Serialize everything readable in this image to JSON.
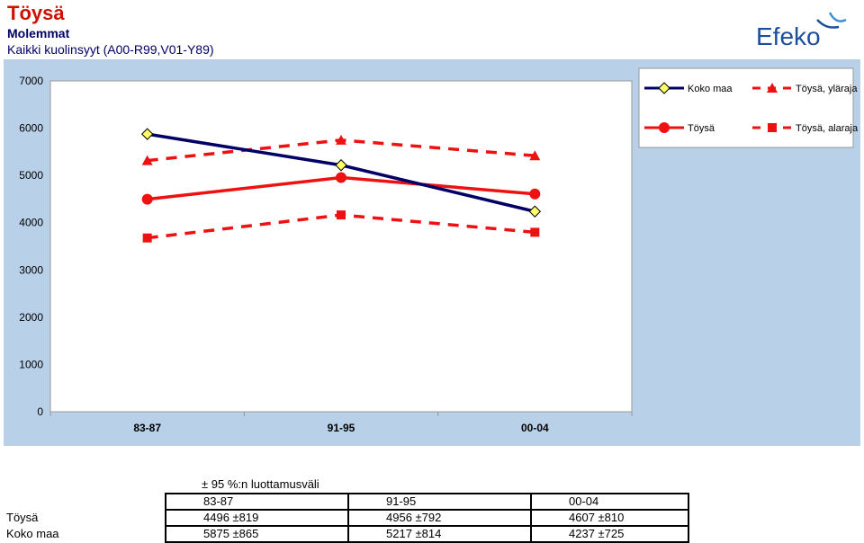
{
  "header": {
    "title": "Töysä",
    "subtitle": "Molemmat",
    "subtitle2": "Kaikki kuolinsyyt (A00-R99,V01-Y89)",
    "logo_text": "Efeko"
  },
  "colors": {
    "title": "#cc1100",
    "navy": "#000066",
    "red": "#ee1111",
    "plot_bg": "#ffffff",
    "frame_bg": "#b8d0e8",
    "diamond_fill": "#ffff66"
  },
  "chart_data": {
    "type": "line",
    "categories": [
      "83-87",
      "91-95",
      "00-04"
    ],
    "ylim": [
      0,
      7000
    ],
    "yticks": [
      "0",
      "1000",
      "2000",
      "3000",
      "4000",
      "5000",
      "6000",
      "7000"
    ],
    "grid": false,
    "legend_position": "top-right",
    "series": [
      {
        "name": "Koko maa",
        "values": [
          5875,
          5217,
          4237
        ],
        "color": "#000066",
        "marker": "diamond",
        "style": "solid"
      },
      {
        "name": "Töysä, yläraja",
        "values": [
          5315,
          5748,
          5417
        ],
        "color": "#ee1111",
        "marker": "triangle",
        "style": "dashed"
      },
      {
        "name": "Töysä",
        "values": [
          4496,
          4956,
          4607
        ],
        "color": "#ee1111",
        "marker": "circle",
        "style": "solid"
      },
      {
        "name": "Töysä, alaraja",
        "values": [
          3677,
          4164,
          3797
        ],
        "color": "#ee1111",
        "marker": "square",
        "style": "dashed"
      }
    ]
  },
  "ci_table": {
    "caption": "± 95 %:n luottamusväli",
    "columns": [
      "83-87",
      "91-95",
      "00-04"
    ],
    "rows": [
      {
        "label": "Töysä",
        "values": [
          "4496 ±819",
          "4956 ±792",
          "4607 ±810"
        ]
      },
      {
        "label": "Koko maa",
        "values": [
          "5875 ±865",
          "5217 ±814",
          "4237 ±725"
        ]
      }
    ]
  }
}
